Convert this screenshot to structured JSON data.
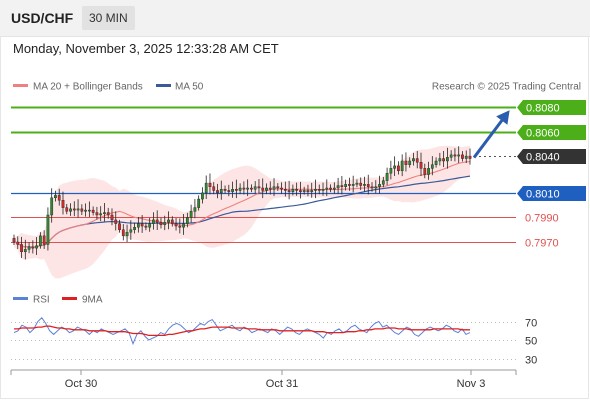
{
  "header": {
    "pair": "USD/CHF",
    "timeframe": "30 MIN"
  },
  "datetime": "Monday, November 3, 2025 12:33:28 AM CET",
  "legend": {
    "ma20": "MA 20 + Bollinger Bands",
    "ma50": "MA 50",
    "credit": "Research © 2025 Trading Central",
    "rsi": "RSI",
    "ma9": "9MA"
  },
  "colors": {
    "ma20": "#f08080",
    "ma50": "#3a5a9a",
    "bands": "#fde0e0",
    "resistance": "#4caf1a",
    "support_blue": "#1f5fbf",
    "support_red": "#e05050",
    "current": "#333333",
    "arrow": "#2a5db0",
    "rsi": "#5b82d6",
    "ma9": "#e02020"
  },
  "chart_data": [
    {
      "type": "candlestick",
      "title": "USD/CHF 30 MIN",
      "x_ticks": [
        "Oct 30",
        "Oct 31",
        "Nov 3"
      ],
      "ylim": [
        0.796,
        0.8084
      ],
      "levels": [
        {
          "value": "0.8080",
          "kind": "resistance"
        },
        {
          "value": "0.8060",
          "kind": "resistance"
        },
        {
          "value": "0.8040",
          "kind": "current"
        },
        {
          "value": "0.8010",
          "kind": "support_blue"
        },
        {
          "value": "0.7990",
          "kind": "support_red"
        },
        {
          "value": "0.7970",
          "kind": "support_red"
        }
      ],
      "closes": [
        0.797,
        0.7968,
        0.7962,
        0.7964,
        0.7966,
        0.7965,
        0.7967,
        0.7975,
        0.7968,
        0.7992,
        0.8006,
        0.8008,
        0.8004,
        0.7998,
        0.7995,
        0.7997,
        0.7996,
        0.7997,
        0.7995,
        0.7996,
        0.7996,
        0.7994,
        0.7992,
        0.7993,
        0.7994,
        0.7992,
        0.7988,
        0.7985,
        0.798,
        0.7975,
        0.7978,
        0.798,
        0.7982,
        0.7985,
        0.7983,
        0.7982,
        0.7985,
        0.7988,
        0.7986,
        0.7984,
        0.7986,
        0.7988,
        0.7985,
        0.7983,
        0.7982,
        0.7985,
        0.799,
        0.7995,
        0.7998,
        0.8005,
        0.801,
        0.8018,
        0.8015,
        0.8012,
        0.801,
        0.8013,
        0.8012,
        0.8011,
        0.8013,
        0.8012,
        0.8014,
        0.8013,
        0.8014,
        0.8013,
        0.8015,
        0.8014,
        0.8012,
        0.8014,
        0.8013,
        0.8015,
        0.8014,
        0.8013,
        0.8012,
        0.8011,
        0.8013,
        0.8012,
        0.8011,
        0.8012,
        0.8011,
        0.8012,
        0.8013,
        0.8012,
        0.8013,
        0.8014,
        0.8013,
        0.8014,
        0.8016,
        0.8015,
        0.8017,
        0.8016,
        0.8017,
        0.8018,
        0.8016,
        0.8017,
        0.8015,
        0.8014,
        0.8015,
        0.8017,
        0.802,
        0.8026,
        0.803,
        0.8032,
        0.8028,
        0.8036,
        0.8033,
        0.8036,
        0.8038,
        0.8035,
        0.803,
        0.8025,
        0.803,
        0.8033,
        0.8036,
        0.8038,
        0.8036,
        0.8039,
        0.8041,
        0.804,
        0.8041,
        0.8038,
        0.804,
        0.8038
      ]
    },
    {
      "type": "line",
      "title": "RSI",
      "ylim": [
        30,
        70
      ],
      "y_ticks": [
        70,
        50,
        30
      ],
      "series": [
        {
          "name": "RSI",
          "values": [
            58,
            60,
            66,
            64,
            58,
            62,
            70,
            74,
            68,
            60,
            56,
            60,
            64,
            62,
            58,
            60,
            64,
            62,
            60,
            56,
            60,
            58,
            62,
            60,
            58,
            56,
            58,
            60,
            62,
            58,
            46,
            56,
            60,
            54,
            50,
            52,
            54,
            58,
            56,
            62,
            66,
            68,
            66,
            62,
            58,
            60,
            64,
            68,
            66,
            70,
            72,
            66,
            60,
            62,
            64,
            66,
            62,
            60,
            64,
            62,
            58,
            60,
            62,
            60,
            58,
            62,
            60,
            56,
            60,
            64,
            62,
            58,
            56,
            60,
            62,
            60,
            58,
            56,
            52,
            58,
            56,
            60,
            62,
            58,
            60,
            64,
            66,
            62,
            60,
            58,
            64,
            68,
            70,
            64,
            66,
            62,
            58,
            56,
            60,
            64,
            62,
            56,
            54,
            58,
            62,
            64,
            62,
            60,
            62,
            66,
            64,
            60,
            58,
            62,
            56,
            58
          ]
        },
        {
          "name": "9MA",
          "values": [
            62,
            62,
            63,
            63,
            63,
            63,
            64,
            64,
            65,
            65,
            64,
            63,
            63,
            62,
            62,
            61,
            61,
            61,
            61,
            60,
            60,
            60,
            60,
            60,
            59,
            59,
            59,
            59,
            59,
            58,
            57,
            57,
            57,
            56,
            55,
            55,
            55,
            55,
            55,
            56,
            56,
            57,
            58,
            59,
            60,
            60,
            61,
            62,
            62,
            63,
            64,
            64,
            64,
            64,
            64,
            63,
            63,
            63,
            63,
            62,
            62,
            62,
            61,
            61,
            61,
            61,
            61,
            60,
            60,
            60,
            60,
            60,
            60,
            60,
            60,
            60,
            59,
            59,
            59,
            58,
            58,
            58,
            58,
            58,
            59,
            59,
            59,
            60,
            60,
            61,
            61,
            62,
            62,
            62,
            63,
            63,
            63,
            62,
            62,
            62,
            61,
            61,
            61,
            61,
            61,
            61,
            62,
            62,
            62,
            62,
            62,
            62,
            62,
            61,
            61,
            61
          ]
        }
      ]
    }
  ]
}
